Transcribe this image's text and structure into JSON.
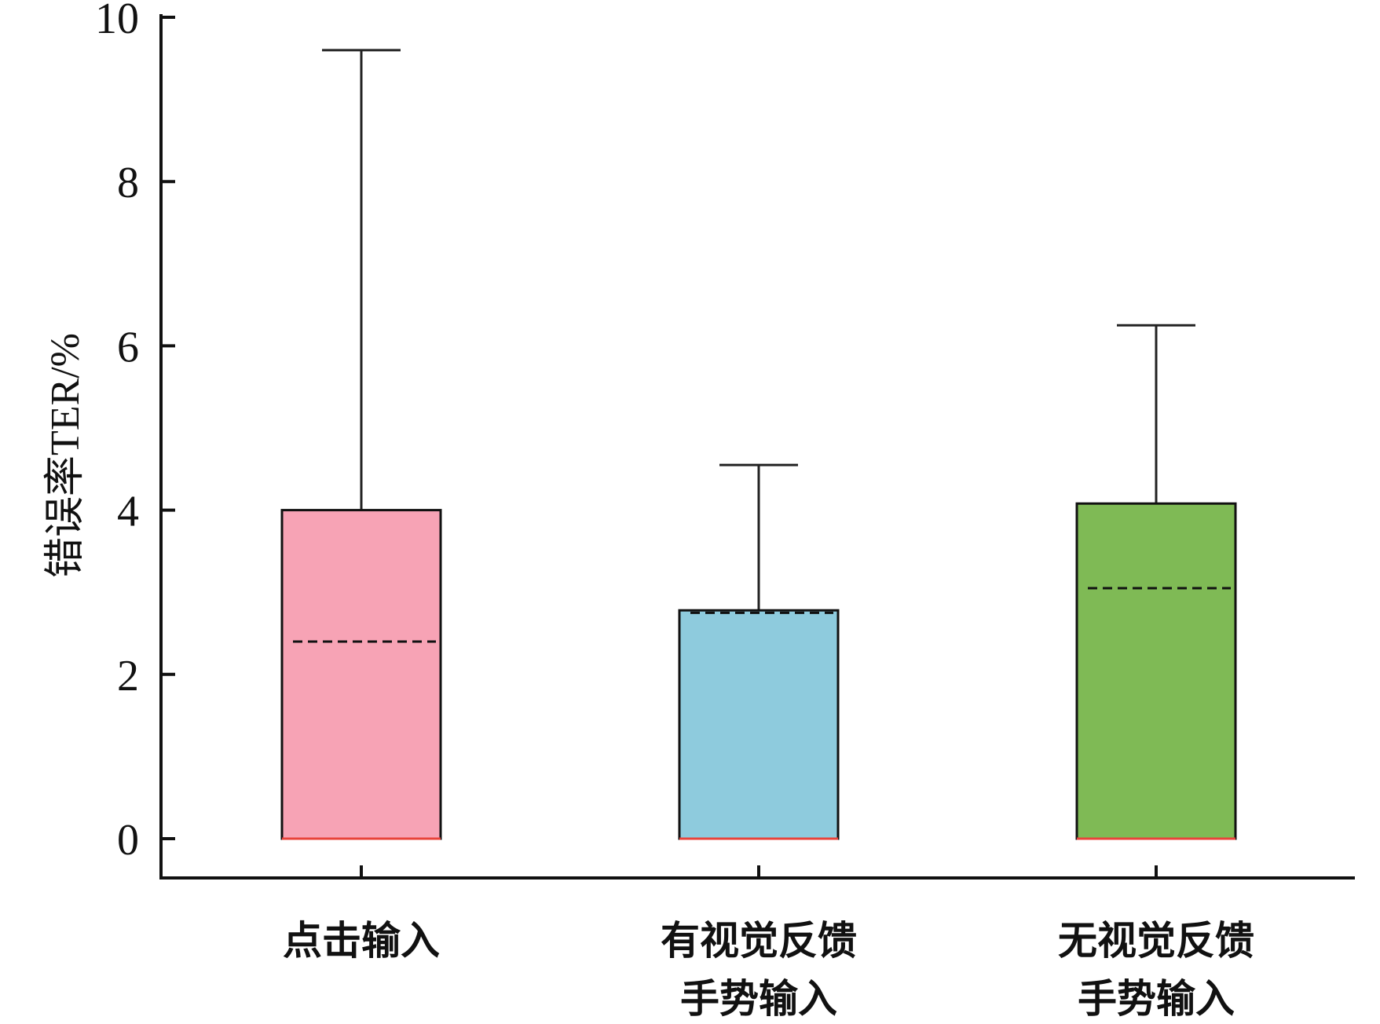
{
  "chart_data": {
    "type": "box",
    "ylabel": "错误率TER/%",
    "xlabel": "",
    "ylim": [
      0,
      10
    ],
    "yticks": [
      0,
      2,
      4,
      6,
      8,
      10
    ],
    "categories": [
      {
        "lines": [
          "点击输入"
        ]
      },
      {
        "lines": [
          "有视觉反馈",
          "手势输入"
        ]
      },
      {
        "lines": [
          "无视觉反馈",
          "手势输入"
        ]
      }
    ],
    "boxes": [
      {
        "min": 0,
        "q1": 0,
        "median": 2.4,
        "q3": 4.0,
        "max": 9.6,
        "color": "#f7a3b5"
      },
      {
        "min": 0,
        "q1": 0,
        "median": 2.75,
        "q3": 2.78,
        "max": 4.55,
        "color": "#8ecbdd"
      },
      {
        "min": 0,
        "q1": 0,
        "median": 3.05,
        "q3": 4.08,
        "max": 6.25,
        "color": "#7fba55"
      }
    ],
    "grid": false,
    "legend": "none"
  }
}
